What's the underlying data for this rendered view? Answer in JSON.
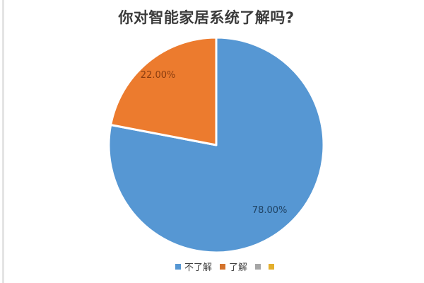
{
  "chart_data": {
    "type": "pie",
    "title": "你对智能家居系统了解吗?",
    "legend_position": "bottom",
    "start_angle_deg": 0,
    "direction": "clockwise",
    "categories": [
      "不了解",
      "了解"
    ],
    "values": [
      78,
      22
    ],
    "series": [
      {
        "name": "不了解",
        "value": 78,
        "display_label": "78.00%",
        "color": "#5697D3",
        "label_color": "#1F4263"
      },
      {
        "name": "了解",
        "value": 22,
        "display_label": "22.00%",
        "color": "#EC7B2E",
        "label_color": "#8A3D10"
      }
    ],
    "legend": [
      {
        "label": "不了解",
        "color": "#5697D3"
      },
      {
        "label": "了解",
        "color": "#D4732C"
      },
      {
        "label": "",
        "color": "#A6A6A6"
      },
      {
        "label": "",
        "color": "#E3AF2D"
      }
    ]
  }
}
